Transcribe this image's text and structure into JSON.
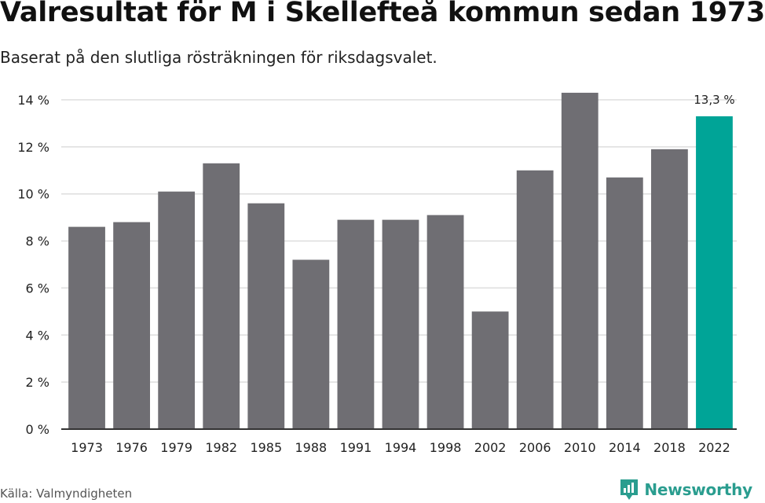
{
  "title": "Valresultat för M i Skellefteå kommun sedan 1973",
  "subtitle": "Baserat på den slutliga rösträkningen för riksdagsvalet.",
  "source": "Källa: Valmyndigheten",
  "brand": "Newsworthy",
  "colors": {
    "bar": "#6f6e73",
    "highlight": "#00a497",
    "grid": "#dddddd",
    "axis": "#333333",
    "brand": "#2a9d8f"
  },
  "chart_data": {
    "type": "bar",
    "categories": [
      "1973",
      "1976",
      "1979",
      "1982",
      "1985",
      "1988",
      "1991",
      "1994",
      "1998",
      "2002",
      "2006",
      "2010",
      "2014",
      "2018",
      "2022"
    ],
    "values": [
      8.6,
      8.8,
      10.1,
      11.3,
      9.6,
      7.2,
      8.9,
      8.9,
      9.1,
      5.0,
      11.0,
      14.3,
      10.7,
      11.9,
      13.3
    ],
    "ylim": [
      0,
      14
    ],
    "yticks": [
      0,
      2,
      4,
      6,
      8,
      10,
      12,
      14
    ],
    "ytick_labels": [
      "0 %",
      "2 %",
      "4 %",
      "6 %",
      "8 %",
      "10 %",
      "12 %",
      "14 %"
    ],
    "highlight_category": "2022",
    "data_labels": [
      {
        "category": "2022",
        "text": "13,3 %"
      }
    ],
    "grid": true,
    "legend": "none"
  }
}
